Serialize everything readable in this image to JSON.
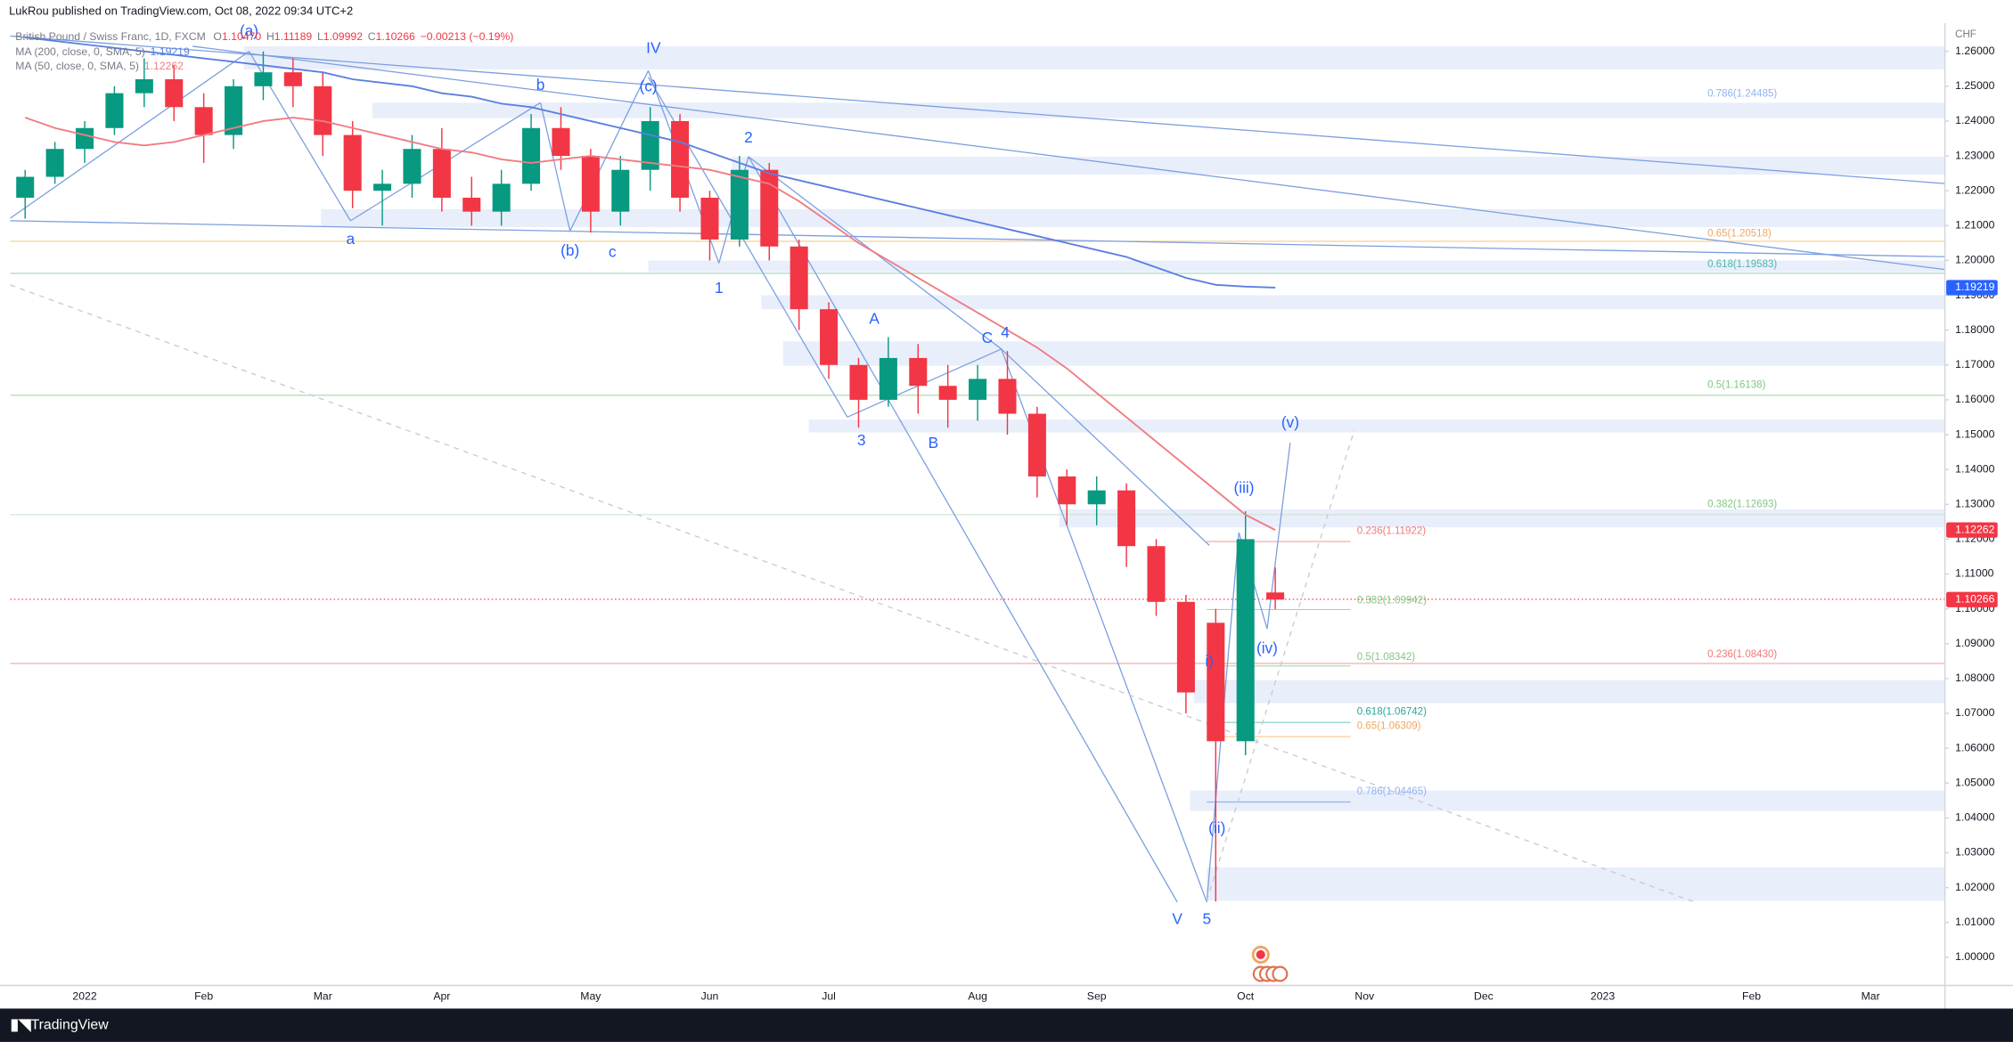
{
  "chart_data": {
    "type": "candlestick",
    "header": "LukRou published on TradingView.com, Oct 08, 2022 09:34 UTC+2",
    "title": "British Pound / Swiss Franc, 1D, FXCM",
    "legend_keys": [
      "O",
      "H",
      "L",
      "C"
    ],
    "legend_values": [
      "1.10470",
      "1.11189",
      "1.09992",
      "1.10266"
    ],
    "legend_change": "−0.00213 (−0.19%)",
    "currency": "CHF",
    "footer": "TradingView",
    "categories": [
      null,
      null,
      "2022",
      null,
      null,
      null,
      "Feb",
      null,
      null,
      null,
      "Mar",
      null,
      null,
      null,
      "Apr",
      null,
      null,
      null,
      null,
      "May",
      null,
      null,
      null,
      "Jun",
      null,
      null,
      null,
      "Jul",
      null,
      null,
      null,
      null,
      "Aug",
      null,
      null,
      null,
      "Sep",
      null,
      null,
      null,
      null,
      "Oct",
      null,
      null,
      null,
      "Nov",
      null,
      null,
      null,
      "Dec",
      null,
      null,
      null,
      "2023",
      null,
      null,
      null,
      null,
      "Feb",
      null,
      null,
      null,
      "Mar",
      null,
      null
    ],
    "open": [
      1.218,
      1.224,
      1.232,
      1.238,
      1.248,
      1.252,
      1.244,
      1.236,
      1.25,
      1.254,
      1.25,
      1.236,
      1.22,
      1.222,
      1.232,
      1.218,
      1.214,
      1.222,
      1.238,
      1.23,
      1.214,
      1.226,
      1.24,
      1.218,
      1.206,
      1.226,
      1.204,
      1.186,
      1.17,
      1.16,
      1.172,
      1.164,
      1.16,
      1.166,
      1.156,
      1.138,
      1.13,
      1.134,
      1.118,
      1.102,
      1.096,
      1.062,
      1.1047,
      null,
      null,
      null,
      null,
      null,
      null,
      null,
      null,
      null,
      null,
      null,
      null,
      null,
      null,
      null,
      null,
      null,
      null,
      null,
      null,
      null,
      null
    ],
    "high": [
      1.226,
      1.234,
      1.24,
      1.25,
      1.258,
      1.256,
      1.248,
      1.252,
      1.26,
      1.258,
      1.254,
      1.24,
      1.226,
      1.236,
      1.238,
      1.224,
      1.226,
      1.242,
      1.244,
      1.232,
      1.23,
      1.244,
      1.242,
      1.22,
      1.23,
      1.228,
      1.206,
      1.188,
      1.172,
      1.178,
      1.176,
      1.17,
      1.17,
      1.174,
      1.158,
      1.14,
      1.138,
      1.136,
      1.12,
      1.104,
      1.1,
      1.128,
      1.11189,
      null,
      null,
      null,
      null,
      null,
      null,
      null,
      null,
      null,
      null,
      null,
      null,
      null,
      null,
      null,
      null,
      null,
      null,
      null,
      null,
      null,
      null
    ],
    "low": [
      1.212,
      1.222,
      1.228,
      1.236,
      1.244,
      1.24,
      1.228,
      1.232,
      1.246,
      1.244,
      1.23,
      1.215,
      1.21,
      1.218,
      1.214,
      1.21,
      1.21,
      1.22,
      1.226,
      1.208,
      1.21,
      1.22,
      1.214,
      1.2,
      1.204,
      1.2,
      1.18,
      1.166,
      1.152,
      1.158,
      1.156,
      1.152,
      1.154,
      1.15,
      1.132,
      1.124,
      1.124,
      1.112,
      1.098,
      1.07,
      1.016,
      1.058,
      1.09992,
      null,
      null,
      null,
      null,
      null,
      null,
      null,
      null,
      null,
      null,
      null,
      null,
      null,
      null,
      null,
      null,
      null,
      null,
      null,
      null,
      null,
      null
    ],
    "close": [
      1.224,
      1.232,
      1.238,
      1.248,
      1.252,
      1.244,
      1.236,
      1.25,
      1.254,
      1.25,
      1.236,
      1.22,
      1.222,
      1.232,
      1.218,
      1.214,
      1.222,
      1.238,
      1.23,
      1.214,
      1.226,
      1.24,
      1.218,
      1.206,
      1.226,
      1.204,
      1.186,
      1.17,
      1.16,
      1.172,
      1.164,
      1.16,
      1.166,
      1.156,
      1.138,
      1.13,
      1.134,
      1.118,
      1.102,
      1.076,
      1.062,
      1.12,
      1.10266,
      null,
      null,
      null,
      null,
      null,
      null,
      null,
      null,
      null,
      null,
      null,
      null,
      null,
      null,
      null,
      null,
      null,
      null,
      null,
      null,
      null,
      null
    ],
    "up_color": "#089981",
    "down_color": "#f23645",
    "series": [
      {
        "name": "MA (200, close, 0, SMA, 5)",
        "color": "#5b7fe0",
        "values": [
          1.264,
          1.263,
          1.262,
          1.261,
          1.26,
          1.259,
          1.258,
          1.257,
          1.256,
          1.255,
          1.254,
          1.252,
          1.251,
          1.25,
          1.248,
          1.247,
          1.245,
          1.244,
          1.242,
          1.24,
          1.238,
          1.236,
          1.234,
          1.231,
          1.228,
          1.225,
          1.223,
          1.221,
          1.219,
          1.217,
          1.215,
          1.213,
          1.211,
          1.209,
          1.207,
          1.205,
          1.203,
          1.201,
          1.198,
          1.195,
          1.193,
          1.1925,
          1.19219,
          null,
          null,
          null,
          null,
          null,
          null,
          null,
          null,
          null,
          null,
          null,
          null,
          null,
          null,
          null,
          null,
          null,
          null,
          null,
          null,
          null,
          null
        ]
      },
      {
        "name": "MA (50, close, 0, SMA, 5)",
        "color": "#f07c82",
        "values": [
          1.241,
          1.238,
          1.236,
          1.234,
          1.233,
          1.234,
          1.236,
          1.238,
          1.24,
          1.241,
          1.24,
          1.238,
          1.236,
          1.234,
          1.232,
          1.231,
          1.229,
          1.228,
          1.229,
          1.23,
          1.229,
          1.228,
          1.227,
          1.226,
          1.224,
          1.222,
          1.217,
          1.211,
          1.205,
          1.2,
          1.195,
          1.19,
          1.185,
          1.18,
          1.175,
          1.169,
          1.162,
          1.155,
          1.148,
          1.141,
          1.134,
          1.127,
          1.12262,
          null,
          null,
          null,
          null,
          null,
          null,
          null,
          null,
          null,
          null,
          null,
          null,
          null,
          null,
          null,
          null,
          null,
          null,
          null,
          null,
          null,
          null
        ]
      }
    ],
    "ylim": [
      0.9919,
      1.2681
    ],
    "yticks": [
      {
        "value": 1.0,
        "label": "1.00000"
      },
      {
        "value": 1.01,
        "label": "1.01000"
      },
      {
        "value": 1.02,
        "label": "1.02000"
      },
      {
        "value": 1.03,
        "label": "1.03000"
      },
      {
        "value": 1.04,
        "label": "1.04000"
      },
      {
        "value": 1.05,
        "label": "1.05000"
      },
      {
        "value": 1.06,
        "label": "1.06000"
      },
      {
        "value": 1.07,
        "label": "1.07000"
      },
      {
        "value": 1.08,
        "label": "1.08000"
      },
      {
        "value": 1.09,
        "label": "1.09000"
      },
      {
        "value": 1.1,
        "label": "1.10000"
      },
      {
        "value": 1.11,
        "label": "1.11000"
      },
      {
        "value": 1.12,
        "label": "1.12000"
      },
      {
        "value": 1.13,
        "label": "1.13000"
      },
      {
        "value": 1.14,
        "label": "1.14000"
      },
      {
        "value": 1.15,
        "label": "1.15000"
      },
      {
        "value": 1.16,
        "label": "1.16000"
      },
      {
        "value": 1.17,
        "label": "1.17000"
      },
      {
        "value": 1.18,
        "label": "1.18000"
      },
      {
        "value": 1.19,
        "label": "1.19000"
      },
      {
        "value": 1.2,
        "label": "1.20000"
      },
      {
        "value": 1.21,
        "label": "1.21000"
      },
      {
        "value": 1.22,
        "label": "1.22000"
      },
      {
        "value": 1.23,
        "label": "1.23000"
      },
      {
        "value": 1.24,
        "label": "1.24000"
      },
      {
        "value": 1.25,
        "label": "1.25000"
      },
      {
        "value": 1.26,
        "label": "1.26000"
      }
    ],
    "grid": false,
    "wave_labels": [
      "(a)",
      "IV",
      "b",
      "(c)",
      "2",
      "a",
      "(b)",
      "c",
      "1",
      "A",
      "C",
      "4",
      "3",
      "B",
      "(v)",
      "(iii)",
      "(iv)",
      "i)",
      "(ii)",
      "V",
      "5"
    ],
    "fib_labels": [
      "0.786(1.24485)",
      "0.65(1.20518)",
      "0.618(1.19583)",
      "0.5(1.16138)",
      "0.382(1.12693)",
      "0.236(1.11922)",
      "0.382(1.09942)",
      "0.5(1.08342)",
      "0.236(1.08430)",
      "0.618(1.06742)",
      "0.65(1.06309)",
      "0.786(1.04465)"
    ]
  }
}
